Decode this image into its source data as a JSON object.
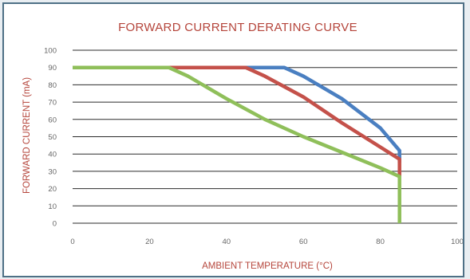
{
  "chart_data": {
    "type": "line",
    "title": "FORWARD CURRENT DERATING CURVE",
    "xlabel": "AMBIENT TEMPERATURE (°C)",
    "ylabel": "FORWARD CURRENT (mA)",
    "xlim": [
      0,
      100
    ],
    "ylim": [
      0,
      100
    ],
    "x_ticks": [
      0,
      20,
      40,
      60,
      80,
      100
    ],
    "y_ticks": [
      0,
      10,
      20,
      30,
      40,
      50,
      60,
      70,
      80,
      90,
      100
    ],
    "grid": "horizontal",
    "series": [
      {
        "color": "#4a7fc1",
        "points": [
          [
            0,
            90
          ],
          [
            55,
            90
          ],
          [
            60,
            85
          ],
          [
            70,
            72
          ],
          [
            80,
            55
          ],
          [
            85,
            42
          ],
          [
            85,
            35
          ]
        ]
      },
      {
        "color": "#c4514a",
        "points": [
          [
            0,
            90
          ],
          [
            45,
            90
          ],
          [
            50,
            85
          ],
          [
            60,
            73
          ],
          [
            70,
            58
          ],
          [
            80,
            44
          ],
          [
            85,
            37
          ],
          [
            85,
            27
          ]
        ]
      },
      {
        "color": "#8fbf5a",
        "points": [
          [
            0,
            90
          ],
          [
            25,
            90
          ],
          [
            30,
            85
          ],
          [
            40,
            72
          ],
          [
            50,
            60
          ],
          [
            60,
            50
          ],
          [
            70,
            41
          ],
          [
            80,
            32
          ],
          [
            85,
            27
          ],
          [
            85,
            0
          ]
        ]
      }
    ]
  }
}
